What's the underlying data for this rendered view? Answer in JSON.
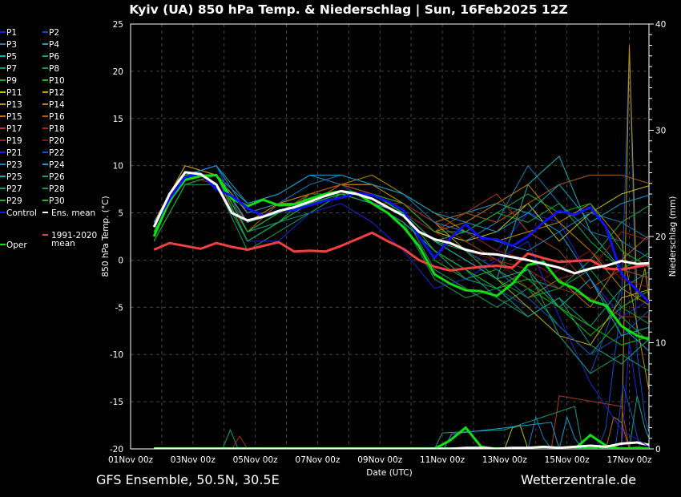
{
  "chart_data": {
    "type": "line",
    "title": "Kyiv  (UA)  850 hPa Temp. & Niederschlag | Sun, 16Feb2025 12Z",
    "footer_left": "GFS Ensemble, 50.5N, 30.5E",
    "footer_right": "Wetterzentrale.de",
    "xlabel": "Date (UTC)",
    "ylabel": "850 hPa Temp. (°C)",
    "y2label": "Niederschlag (mm)",
    "x_unit": "days since 01Nov 00z",
    "xlim": [
      0,
      16.63
    ],
    "ylim": [
      -20,
      25
    ],
    "y2lim": [
      0,
      40
    ],
    "yticks": [
      25,
      20,
      15,
      10,
      5,
      0,
      -5,
      -10,
      -15,
      -20
    ],
    "y2ticks": [
      40,
      30,
      20,
      10,
      0
    ],
    "xticks": [
      {
        "t": 0,
        "label": "01Nov 00z"
      },
      {
        "t": 2,
        "label": "03Nov 00z"
      },
      {
        "t": 4,
        "label": "05Nov 00z"
      },
      {
        "t": 6,
        "label": "07Nov 00z"
      },
      {
        "t": 8,
        "label": "09Nov 00z"
      },
      {
        "t": 10,
        "label": "11Nov 00z"
      },
      {
        "t": 12,
        "label": "13Nov 00z"
      },
      {
        "t": 14,
        "label": "15Nov 00z"
      },
      {
        "t": 16,
        "label": "17Nov 00z"
      }
    ],
    "grid": true,
    "legend_placement": "left-outside",
    "x_main": [
      0.75,
      1.25,
      1.75,
      2.25,
      2.75,
      3.25,
      3.75,
      4.25,
      4.75,
      5.25,
      5.75,
      6.25,
      6.75,
      7.25,
      7.75,
      8.25,
      8.75,
      9.25,
      9.75,
      10.25,
      10.75,
      11.25,
      11.75,
      12.25,
      12.75,
      13.25,
      13.75,
      14.25,
      14.75,
      15.25,
      15.75,
      16.25,
      16.75
    ],
    "x_members": [
      0.75,
      1.75,
      2.75,
      3.75,
      4.75,
      5.75,
      6.75,
      7.75,
      8.75,
      9.75,
      10.75,
      11.75,
      12.75,
      13.75,
      14.75,
      15.75,
      16.75
    ],
    "main_series": [
      {
        "name": "1991-2020 mean",
        "legend": [
          "1991-2020",
          "mean"
        ],
        "color": "#f04040",
        "values": [
          1.1,
          1.8,
          1.5,
          1.2,
          1.8,
          1.4,
          1.1,
          1.5,
          1.9,
          0.9,
          1.0,
          0.9,
          1.5,
          2.2,
          2.9,
          2.0,
          1.2,
          0.0,
          -0.7,
          -1.1,
          -0.9,
          -0.7,
          -0.6,
          -0.8,
          0.7,
          0.2,
          -0.2,
          -0.1,
          0.0,
          -0.9,
          -1.0,
          -0.7,
          -0.4
        ]
      },
      {
        "name": "Oper",
        "legend": [
          "Oper"
        ],
        "color": "#10e010",
        "values": [
          2.5,
          6.3,
          8.5,
          8.9,
          9.0,
          6.5,
          5.7,
          6.4,
          5.8,
          5.9,
          6.5,
          7.0,
          7.3,
          7.1,
          6.0,
          5.0,
          3.5,
          1.5,
          -1.5,
          -2.5,
          -3.2,
          -3.3,
          -3.8,
          -2.5,
          -0.5,
          -0.2,
          -2.3,
          -3.0,
          -4.3,
          -4.8,
          -7.0,
          -8.0,
          -8.5
        ],
        "precip": [
          0,
          0,
          0,
          0,
          0,
          0,
          0,
          0,
          0,
          0,
          0,
          0,
          0,
          0,
          0,
          0,
          0,
          0,
          0,
          0.8,
          2.0,
          0.2,
          0,
          0,
          0,
          0,
          0,
          0,
          1.3,
          0.3,
          0,
          0.1,
          0
        ]
      },
      {
        "name": "Control",
        "legend": [
          "Control"
        ],
        "color": "#1010f0",
        "values": [
          3.5,
          6.5,
          8.8,
          9.2,
          7.5,
          6.8,
          5.5,
          4.7,
          5.2,
          5.3,
          5.8,
          6.3,
          6.6,
          7.1,
          6.9,
          6.2,
          5.3,
          2.5,
          0.2,
          2.3,
          3.8,
          2.3,
          2.2,
          1.5,
          2.5,
          4.0,
          5.2,
          4.8,
          5.6,
          3.5,
          -1.5,
          -3.2,
          -4.8
        ]
      },
      {
        "name": "Ens. mean",
        "legend": [
          "Ens. mean"
        ],
        "color": "#ffffff",
        "values": [
          3.5,
          7.0,
          9.3,
          9.1,
          8.0,
          5.0,
          4.2,
          4.6,
          5.2,
          5.6,
          6.2,
          6.8,
          7.3,
          7.0,
          6.5,
          5.6,
          4.7,
          3.0,
          2.2,
          1.8,
          1.1,
          0.7,
          0.6,
          0.3,
          0.0,
          -0.4,
          -0.8,
          -1.4,
          -0.9,
          -0.6,
          -0.1,
          -0.4,
          -0.3
        ],
        "precip": [
          0,
          0,
          0,
          0,
          0,
          0,
          0,
          0,
          0,
          0,
          0,
          0,
          0,
          0,
          0,
          0,
          0,
          0,
          0,
          0,
          0.1,
          0.1,
          0,
          0.1,
          0.1,
          0.2,
          0.1,
          0.2,
          0.3,
          0.2,
          0.5,
          0.6,
          0.3
        ]
      }
    ],
    "members": [
      {
        "name": "P1",
        "color": "#2020e0",
        "values": [
          3,
          9,
          9,
          2,
          4,
          6,
          7,
          7,
          5,
          2,
          3,
          1,
          5,
          4,
          -2,
          -6,
          -4
        ]
      },
      {
        "name": "P2",
        "color": "#1050c0",
        "values": [
          4,
          10,
          9,
          3,
          5,
          7,
          8,
          6,
          4,
          1,
          -1,
          -3,
          -5,
          -8,
          -12,
          -3,
          -5
        ],
        "precip": [
          [
            15.25,
            2
          ],
          [
            15.75,
            14
          ],
          [
            16.0,
            38
          ],
          [
            16.25,
            9
          ],
          [
            16.5,
            3
          ]
        ]
      },
      {
        "name": "P3",
        "color": "#1880c8",
        "values": [
          3,
          9,
          10,
          5,
          6,
          7,
          8,
          7,
          6,
          3,
          2,
          4,
          10,
          6,
          3,
          2,
          0
        ],
        "precip": [
          [
            13.0,
            3
          ],
          [
            13.25,
            1
          ]
        ]
      },
      {
        "name": "P4",
        "color": "#10a0d0",
        "values": [
          4,
          9,
          9,
          6,
          7,
          9,
          8,
          7,
          6,
          4,
          5,
          6,
          5,
          3,
          -2,
          -7,
          -10
        ],
        "precip": [
          [
            14.0,
            3
          ],
          [
            14.25,
            1
          ]
        ]
      },
      {
        "name": "P5",
        "color": "#10b0b0",
        "values": [
          3,
          9,
          9,
          4,
          5,
          6,
          7,
          6,
          5,
          2,
          0,
          -2,
          8,
          11,
          3,
          -1,
          -2
        ]
      },
      {
        "name": "P6",
        "color": "#10a080",
        "values": [
          3,
          9,
          8,
          2,
          4,
          5,
          7,
          6,
          4,
          1,
          -1,
          -4,
          -6,
          -4,
          -9,
          -11,
          -8
        ],
        "precip": [
          [
            10.0,
            1.5
          ],
          [
            12.0,
            1.8
          ],
          [
            14.25,
            4
          ]
        ]
      },
      {
        "name": "P7",
        "color": "#10a060",
        "values": [
          2,
          8,
          8,
          1,
          3,
          5,
          7,
          7,
          5,
          -1,
          -3,
          -5,
          -3,
          -7,
          -10,
          -6,
          -9
        ],
        "precip": [
          [
            3.2,
            1.8
          ]
        ]
      },
      {
        "name": "P8",
        "color": "#10a040",
        "values": [
          3,
          9,
          9,
          3,
          5,
          6,
          7,
          6,
          5,
          3,
          2,
          0,
          -2,
          -3,
          0,
          4,
          6
        ]
      },
      {
        "name": "P9",
        "color": "#10b030",
        "values": [
          2,
          8,
          9,
          2,
          4,
          7,
          7,
          6,
          5,
          2,
          3,
          5,
          4,
          6,
          2,
          -1,
          1
        ]
      },
      {
        "name": "P10",
        "color": "#10c010",
        "values": [
          3,
          9,
          9,
          4,
          6,
          6,
          7,
          7,
          5,
          0,
          -2,
          -1,
          -3,
          -5,
          -8,
          -5,
          -3
        ]
      },
      {
        "name": "P11",
        "color": "#c0c010",
        "values": [
          4,
          10,
          9,
          5,
          6,
          6,
          8,
          7,
          6,
          3,
          2,
          3,
          6,
          2,
          5,
          7,
          8
        ],
        "precip": [
          [
            12.25,
            2
          ],
          [
            12.5,
            2.2
          ]
        ]
      },
      {
        "name": "P12",
        "color": "#c0a800",
        "values": [
          4,
          10,
          9,
          4,
          5,
          7,
          8,
          8,
          6,
          4,
          1,
          -2,
          -5,
          -8,
          -9,
          -4,
          -3
        ]
      },
      {
        "name": "P13",
        "color": "#c09000",
        "values": [
          4,
          10,
          9,
          5,
          6,
          7,
          8,
          9,
          7,
          5,
          3,
          2,
          3,
          4,
          6,
          2,
          -16
        ],
        "precip": [
          [
            16.0,
            38
          ],
          [
            16.25,
            14
          ],
          [
            16.5,
            17
          ],
          [
            16.6,
            15
          ]
        ]
      },
      {
        "name": "P14",
        "color": "#c08000",
        "values": [
          4,
          9,
          9,
          4,
          6,
          7,
          8,
          8,
          6,
          3,
          4,
          6,
          8,
          4,
          1,
          -3,
          -5
        ]
      },
      {
        "name": "P15",
        "color": "#c07010",
        "values": [
          4,
          9,
          8,
          3,
          5,
          7,
          8,
          7,
          5,
          2,
          1,
          -1,
          -4,
          -2,
          -5,
          0,
          3
        ],
        "precip": [
          [
            15.5,
            3
          ],
          [
            15.75,
            2.5
          ]
        ]
      },
      {
        "name": "P16",
        "color": "#b06010",
        "values": [
          4,
          9,
          8,
          3,
          6,
          6,
          8,
          7,
          6,
          4,
          5,
          4,
          6,
          8,
          9,
          9,
          8
        ]
      },
      {
        "name": "P17",
        "color": "#b04010",
        "values": [
          4,
          9,
          8,
          4,
          5,
          7,
          8,
          7,
          6,
          3,
          5,
          7,
          3,
          1,
          -3,
          -1,
          -2
        ],
        "precip": [
          [
            13.75,
            5
          ],
          [
            15.75,
            4
          ]
        ]
      },
      {
        "name": "P18",
        "color": "#a03010",
        "values": [
          4,
          9,
          8,
          3,
          5,
          6,
          7,
          7,
          6,
          4,
          2,
          0,
          -1,
          -3,
          -4,
          -6,
          -6
        ],
        "precip": [
          [
            3.5,
            1.2
          ]
        ]
      },
      {
        "name": "P19",
        "color": "#a02010",
        "values": [
          4,
          9,
          8,
          4,
          5,
          6,
          7,
          6,
          6,
          4,
          3,
          1,
          0,
          -2,
          -1,
          3,
          2
        ]
      },
      {
        "name": "P20",
        "color": "#901010",
        "values": [
          4,
          9,
          8,
          3,
          5,
          6,
          7,
          7,
          5,
          3,
          1,
          0,
          -3,
          -1,
          1,
          -2,
          -3
        ]
      },
      {
        "name": "P21",
        "color": "#2020e0",
        "values": [
          3,
          9,
          9,
          2,
          2,
          5,
          6,
          4,
          1,
          -3,
          -2,
          0,
          2,
          -6,
          -13,
          -18,
          -20
        ],
        "precip": [
          [
            16.0,
            10
          ],
          [
            16.25,
            5
          ],
          [
            16.5,
            2
          ]
        ]
      },
      {
        "name": "P22",
        "color": "#1050c0",
        "values": [
          3,
          9,
          10,
          3,
          4,
          6,
          7,
          6,
          5,
          2,
          1,
          -1,
          -4,
          -7,
          -10,
          -8,
          -5
        ],
        "precip": [
          [
            15.8,
            6
          ],
          [
            16.1,
            3
          ]
        ]
      },
      {
        "name": "P23",
        "color": "#1880c8",
        "values": [
          3,
          9,
          10,
          5,
          6,
          8,
          9,
          8,
          7,
          4,
          3,
          2,
          1,
          3,
          5,
          4,
          2
        ]
      },
      {
        "name": "P24",
        "color": "#10a0d0",
        "values": [
          4,
          9,
          10,
          6,
          7,
          9,
          9,
          8,
          7,
          5,
          4,
          3,
          5,
          8,
          4,
          6,
          7
        ],
        "precip": [
          [
            10.3,
            1.4
          ],
          [
            13.5,
            2.5
          ]
        ]
      },
      {
        "name": "P25",
        "color": "#10b0b0",
        "values": [
          3,
          9,
          9,
          4,
          5,
          6,
          7,
          6,
          5,
          2,
          0,
          -2,
          -1,
          -5,
          -2,
          -8,
          -7
        ]
      },
      {
        "name": "P26",
        "color": "#10a080",
        "values": [
          3,
          9,
          9,
          3,
          4,
          6,
          7,
          6,
          4,
          1,
          -2,
          -3,
          -6,
          -4,
          -7,
          -3,
          -1
        ],
        "precip": [
          [
            16.25,
            5
          ],
          [
            16.5,
            2
          ]
        ]
      },
      {
        "name": "P27",
        "color": "#10a060",
        "values": [
          3,
          9,
          9,
          2,
          4,
          6,
          7,
          6,
          4,
          -2,
          -4,
          -3,
          -1,
          -8,
          -12,
          -10,
          -12
        ]
      },
      {
        "name": "P28",
        "color": "#10a040",
        "values": [
          3,
          9,
          9,
          3,
          5,
          6,
          7,
          7,
          5,
          2,
          1,
          -2,
          -4,
          -3,
          -1,
          -5,
          -7
        ]
      },
      {
        "name": "P29",
        "color": "#10b030",
        "values": [
          2,
          8,
          9,
          2,
          4,
          6,
          7,
          7,
          6,
          3,
          3,
          5,
          7,
          5,
          6,
          1,
          -1
        ]
      },
      {
        "name": "P30",
        "color": "#10c010",
        "values": [
          3,
          9,
          9,
          3,
          5,
          6,
          7,
          7,
          5,
          1,
          -1,
          -3,
          -2,
          -5,
          -7,
          -9,
          -8
        ]
      }
    ]
  }
}
